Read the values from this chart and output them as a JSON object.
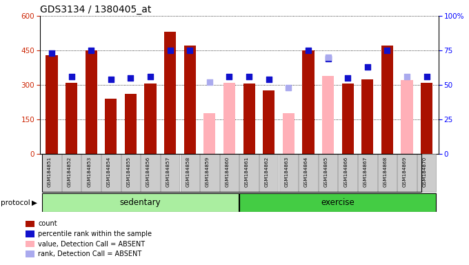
{
  "title": "GDS3134 / 1380405_at",
  "samples": [
    "GSM184851",
    "GSM184852",
    "GSM184853",
    "GSM184854",
    "GSM184855",
    "GSM184856",
    "GSM184857",
    "GSM184858",
    "GSM184859",
    "GSM184860",
    "GSM184861",
    "GSM184862",
    "GSM184863",
    "GSM184864",
    "GSM184865",
    "GSM184866",
    "GSM184867",
    "GSM184868",
    "GSM184869",
    "GSM184870"
  ],
  "count_values": [
    430,
    310,
    450,
    240,
    260,
    305,
    530,
    470,
    null,
    null,
    305,
    275,
    null,
    450,
    null,
    305,
    325,
    470,
    null,
    310
  ],
  "count_absent": [
    null,
    null,
    null,
    null,
    null,
    null,
    null,
    null,
    175,
    310,
    null,
    null,
    175,
    null,
    340,
    null,
    null,
    null,
    320,
    null
  ],
  "percentile_values": [
    73,
    56,
    75,
    54,
    55,
    56,
    75,
    75,
    null,
    56,
    56,
    54,
    null,
    75,
    69,
    55,
    63,
    75,
    null,
    56
  ],
  "percentile_absent": [
    null,
    null,
    null,
    null,
    null,
    null,
    null,
    null,
    52,
    null,
    null,
    null,
    48,
    null,
    70,
    null,
    null,
    null,
    56,
    null
  ],
  "ylim_left": [
    0,
    600
  ],
  "ylim_right": [
    0,
    100
  ],
  "yticks_left": [
    0,
    150,
    300,
    450,
    600
  ],
  "yticks_right": [
    0,
    25,
    50,
    75,
    100
  ],
  "bar_color_present": "#aa1100",
  "bar_color_absent": "#ffb0b8",
  "dot_color_present": "#1111cc",
  "dot_color_absent": "#aaaaee",
  "sedentary_count": 10,
  "exercise_count": 10
}
